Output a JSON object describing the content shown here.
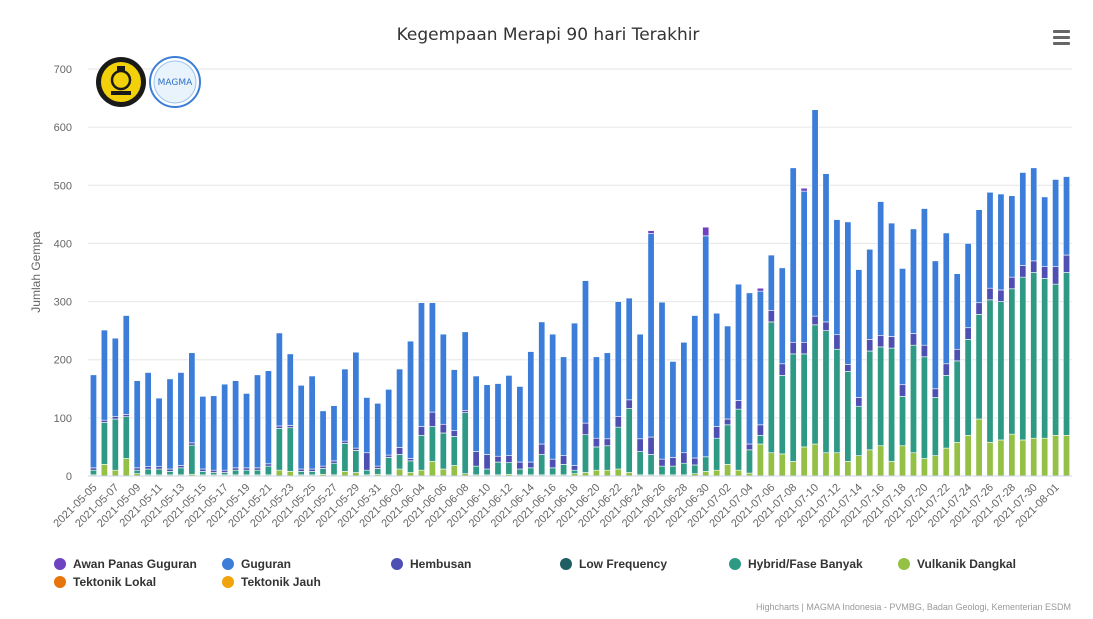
{
  "colors": {
    "Awan Panas Guguran": "#6f42c1",
    "Guguran": "#3b7dd8",
    "Hembusan": "#4e4fb3",
    "Low Frequency": "#1f5f63",
    "Hybrid/Fase Banyak": "#2e9a86",
    "Vulkanik Dangkal": "#94c045",
    "Tektonik Lokal": "#e8740c",
    "Tektonik Jauh": "#f0a30a"
  },
  "logos": [
    {
      "name": "ESDM logo"
    },
    {
      "name": "MAGMA",
      "text": "MAGMA"
    }
  ],
  "menu": {
    "icon": "hamburger-menu-icon"
  },
  "credits": "Highcharts | MAGMA Indonesia - PVMBG, Badan Geologi, Kementerian ESDM",
  "chart_data": {
    "type": "bar",
    "stacked": true,
    "title": "Kegempaan Merapi 90 hari Terakhir",
    "xlabel": "",
    "ylabel": "Jumlah Gempa",
    "ylim": [
      0,
      700
    ],
    "yticks": [
      0,
      100,
      200,
      300,
      400,
      500,
      600,
      700
    ],
    "grid": true,
    "legend_position": "bottom-left",
    "x_start": "2021-05-05",
    "x_label_step": 2,
    "x": [
      "2021-05-05",
      "2021-05-06",
      "2021-05-07",
      "2021-05-08",
      "2021-05-09",
      "2021-05-10",
      "2021-05-11",
      "2021-05-12",
      "2021-05-13",
      "2021-05-14",
      "2021-05-15",
      "2021-05-16",
      "2021-05-17",
      "2021-05-18",
      "2021-05-19",
      "2021-05-20",
      "2021-05-21",
      "2021-05-22",
      "2021-05-23",
      "2021-05-24",
      "2021-05-25",
      "2021-05-26",
      "2021-05-27",
      "2021-05-28",
      "2021-05-29",
      "2021-05-30",
      "2021-05-31",
      "2021-06-01",
      "2021-06-02",
      "2021-06-03",
      "2021-06-04",
      "2021-06-05",
      "2021-06-06",
      "2021-06-07",
      "2021-06-08",
      "2021-06-09",
      "2021-06-10",
      "2021-06-11",
      "2021-06-12",
      "2021-06-13",
      "2021-06-14",
      "2021-06-15",
      "2021-06-16",
      "2021-06-17",
      "2021-06-18",
      "2021-06-19",
      "2021-06-20",
      "2021-06-21",
      "2021-06-22",
      "2021-06-23",
      "2021-06-24",
      "2021-06-25",
      "2021-06-26",
      "2021-06-27",
      "2021-06-28",
      "2021-06-29",
      "2021-06-30",
      "2021-07-01",
      "2021-07-02",
      "2021-07-03",
      "2021-07-04",
      "2021-07-05",
      "2021-07-06",
      "2021-07-07",
      "2021-07-08",
      "2021-07-09",
      "2021-07-10",
      "2021-07-11",
      "2021-07-12",
      "2021-07-13",
      "2021-07-14",
      "2021-07-15",
      "2021-07-16",
      "2021-07-17",
      "2021-07-18",
      "2021-07-19",
      "2021-07-20",
      "2021-07-21",
      "2021-07-22",
      "2021-07-23",
      "2021-07-24",
      "2021-07-25",
      "2021-07-26",
      "2021-07-27",
      "2021-07-28",
      "2021-07-29",
      "2021-07-30",
      "2021-07-31",
      "2021-08-01",
      "2021-08-02"
    ],
    "series": [
      {
        "name": "Vulkanik Dangkal",
        "values": [
          2,
          20,
          10,
          30,
          4,
          2,
          2,
          2,
          2,
          3,
          2,
          2,
          2,
          2,
          2,
          2,
          2,
          10,
          8,
          2,
          2,
          3,
          2,
          8,
          6,
          2,
          3,
          2,
          12,
          6,
          10,
          25,
          12,
          18,
          4,
          2,
          2,
          2,
          3,
          2,
          2,
          2,
          2,
          2,
          4,
          6,
          10,
          10,
          12,
          6,
          2,
          2,
          2,
          2,
          2,
          4,
          8,
          10,
          20,
          10,
          5,
          55,
          40,
          38,
          25,
          50,
          55,
          40,
          40,
          25,
          35,
          45,
          52,
          25,
          52,
          40,
          30,
          35,
          48,
          58,
          70,
          98,
          58,
          62,
          72,
          62,
          65,
          65,
          70,
          70
        ]
      },
      {
        "name": "Hybrid/Fase Banyak",
        "values": [
          8,
          72,
          88,
          72,
          6,
          10,
          10,
          6,
          12,
          50,
          6,
          4,
          4,
          8,
          8,
          8,
          15,
          72,
          75,
          6,
          6,
          10,
          20,
          48,
          38,
          8,
          10,
          30,
          25,
          20,
          60,
          60,
          62,
          50,
          105,
          15,
          10,
          22,
          20,
          10,
          12,
          35,
          12,
          18,
          6,
          65,
          40,
          42,
          72,
          110,
          40,
          35,
          15,
          15,
          20,
          15,
          25,
          55,
          68,
          105,
          40,
          15,
          225,
          135,
          185,
          160,
          205,
          210,
          178,
          155,
          85,
          170,
          170,
          195,
          85,
          185,
          175,
          100,
          125,
          140,
          165,
          180,
          245,
          238,
          250,
          280,
          285,
          275,
          260,
          280
        ]
      },
      {
        "name": "Hembusan",
        "values": [
          4,
          4,
          4,
          4,
          4,
          4,
          4,
          4,
          4,
          4,
          4,
          4,
          4,
          4,
          4,
          4,
          4,
          4,
          4,
          4,
          4,
          4,
          4,
          4,
          4,
          30,
          4,
          4,
          12,
          4,
          15,
          25,
          15,
          10,
          4,
          25,
          25,
          10,
          12,
          12,
          10,
          18,
          15,
          15,
          8,
          20,
          15,
          12,
          18,
          15,
          22,
          30,
          12,
          15,
          18,
          12,
          0,
          20,
          10,
          15,
          10,
          18,
          20,
          20,
          20,
          20,
          15,
          15,
          25,
          12,
          15,
          20,
          20,
          20,
          20,
          20,
          20,
          15,
          20,
          20,
          20,
          20,
          20,
          20,
          20,
          20,
          20,
          20,
          30,
          30
        ]
      },
      {
        "name": "Guguran",
        "values": [
          160,
          155,
          135,
          170,
          150,
          162,
          118,
          155,
          160,
          155,
          125,
          128,
          148,
          150,
          128,
          160,
          160,
          160,
          123,
          144,
          160,
          95,
          95,
          124,
          165,
          95,
          108,
          113,
          135,
          202,
          213,
          188,
          155,
          105,
          135,
          130,
          120,
          125,
          138,
          130,
          190,
          210,
          215,
          170,
          245,
          245,
          140,
          148,
          198,
          175,
          180,
          350,
          270,
          165,
          190,
          245,
          380,
          195,
          160,
          200,
          260,
          230,
          95,
          165,
          300,
          260,
          355,
          255,
          198,
          245,
          220,
          155,
          230,
          195,
          200,
          180,
          235,
          220,
          225,
          130,
          145,
          160,
          165,
          165,
          140,
          160,
          160,
          120,
          150,
          135
        ]
      },
      {
        "name": "Awan Panas Guguran",
        "values": [
          0,
          0,
          0,
          0,
          0,
          0,
          0,
          0,
          0,
          0,
          0,
          0,
          0,
          0,
          0,
          0,
          0,
          0,
          0,
          0,
          0,
          0,
          0,
          0,
          0,
          0,
          0,
          0,
          0,
          0,
          0,
          0,
          0,
          0,
          0,
          0,
          0,
          0,
          0,
          0,
          0,
          0,
          0,
          0,
          0,
          0,
          0,
          0,
          0,
          0,
          0,
          5,
          0,
          0,
          0,
          0,
          15,
          0,
          0,
          0,
          0,
          5,
          0,
          0,
          0,
          5,
          0,
          0,
          0,
          0,
          0,
          0,
          0,
          0,
          0,
          0,
          0,
          0,
          0,
          0,
          0,
          0,
          0,
          0,
          0,
          0,
          0,
          0,
          0,
          0
        ]
      },
      {
        "name": "Low Frequency",
        "values": [
          0,
          0,
          0,
          0,
          0,
          0,
          0,
          0,
          0,
          0,
          0,
          0,
          0,
          0,
          0,
          0,
          0,
          0,
          0,
          0,
          0,
          0,
          0,
          0,
          0,
          0,
          0,
          0,
          0,
          0,
          0,
          0,
          0,
          0,
          0,
          0,
          0,
          0,
          0,
          0,
          0,
          0,
          0,
          0,
          0,
          0,
          0,
          0,
          0,
          0,
          0,
          0,
          0,
          0,
          0,
          0,
          0,
          0,
          0,
          0,
          0,
          0,
          0,
          0,
          0,
          0,
          0,
          0,
          0,
          0,
          0,
          0,
          0,
          0,
          0,
          0,
          0,
          0,
          0,
          0,
          0,
          0,
          0,
          0,
          0,
          0,
          0,
          0,
          0,
          0
        ]
      },
      {
        "name": "Tektonik Lokal",
        "values": [
          0,
          0,
          0,
          0,
          0,
          0,
          0,
          0,
          0,
          0,
          0,
          0,
          0,
          0,
          0,
          0,
          0,
          0,
          0,
          0,
          0,
          0,
          0,
          0,
          0,
          0,
          0,
          0,
          0,
          0,
          0,
          0,
          0,
          0,
          0,
          0,
          0,
          0,
          0,
          0,
          0,
          0,
          0,
          0,
          0,
          0,
          0,
          0,
          0,
          0,
          0,
          0,
          0,
          0,
          0,
          0,
          0,
          0,
          0,
          0,
          0,
          0,
          0,
          0,
          0,
          0,
          0,
          0,
          0,
          0,
          0,
          0,
          0,
          0,
          0,
          0,
          0,
          0,
          0,
          0,
          0,
          0,
          0,
          0,
          0,
          0,
          0,
          0,
          0,
          0
        ]
      },
      {
        "name": "Tektonik Jauh",
        "values": [
          0,
          0,
          0,
          0,
          0,
          0,
          0,
          0,
          0,
          0,
          0,
          0,
          0,
          0,
          0,
          0,
          0,
          0,
          0,
          0,
          0,
          0,
          0,
          0,
          0,
          0,
          0,
          0,
          0,
          0,
          0,
          0,
          0,
          0,
          0,
          0,
          0,
          0,
          0,
          0,
          0,
          0,
          0,
          0,
          0,
          0,
          0,
          0,
          0,
          0,
          0,
          0,
          0,
          0,
          0,
          0,
          0,
          0,
          0,
          0,
          0,
          0,
          0,
          0,
          0,
          0,
          0,
          0,
          0,
          0,
          0,
          0,
          0,
          0,
          0,
          0,
          0,
          0,
          0,
          0,
          0,
          0,
          0,
          0,
          0,
          0,
          0,
          0,
          0,
          0
        ]
      }
    ],
    "legend": [
      "Awan Panas Guguran",
      "Guguran",
      "Hembusan",
      "Low Frequency",
      "Hybrid/Fase Banyak",
      "Vulkanik Dangkal",
      "Tektonik Lokal",
      "Tektonik Jauh"
    ]
  }
}
